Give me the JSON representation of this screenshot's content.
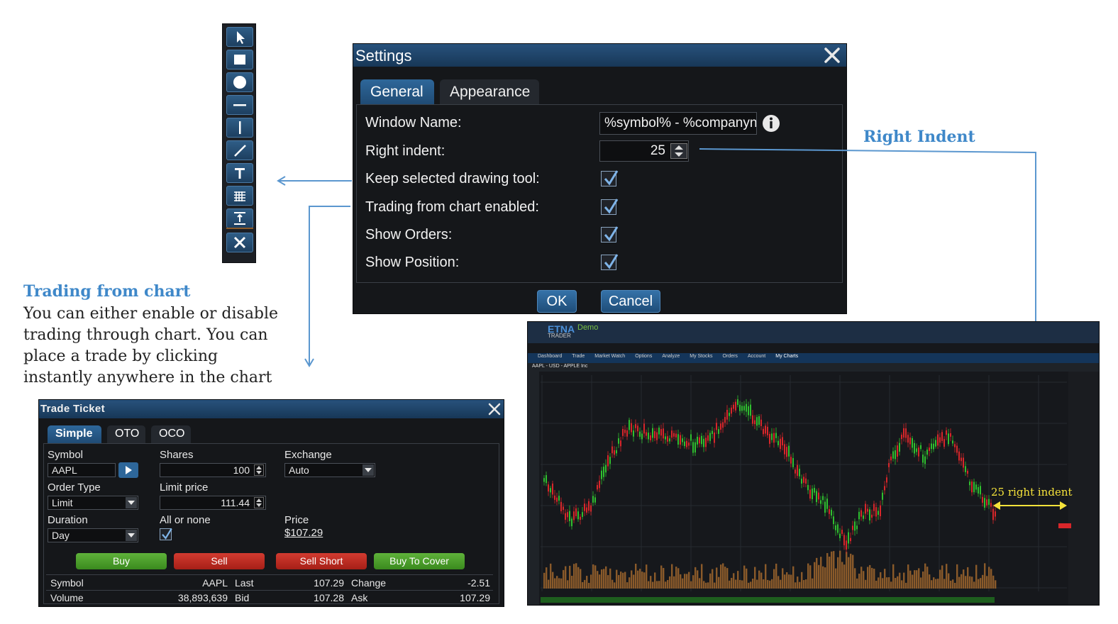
{
  "settings": {
    "title": "Settings",
    "tabs": [
      {
        "label": "General",
        "active": true
      },
      {
        "label": "Appearance",
        "active": false
      }
    ],
    "fields": {
      "window_name": {
        "label": "Window Name:",
        "value": "%symbol% - %companyna"
      },
      "right_indent": {
        "label": "Right indent:",
        "value": "25"
      },
      "keep_tool": {
        "label": "Keep selected drawing tool:",
        "checked": true
      },
      "trading_enabled": {
        "label": "Trading from chart enabled:",
        "checked": true
      },
      "show_orders": {
        "label": "Show Orders:",
        "checked": true
      },
      "show_position": {
        "label": "Show Position:",
        "checked": true
      }
    },
    "ok_label": "OK",
    "cancel_label": "Cancel"
  },
  "toolbar": {
    "tools": [
      "cursor-icon",
      "rectangle-icon",
      "circle-icon",
      "horizontal-line-icon",
      "vertical-line-icon",
      "trend-line-icon",
      "text-icon",
      "fibonacci-grid-icon",
      "measure-icon",
      "close-icon"
    ]
  },
  "annotations": {
    "right_indent_title": "Right Indent",
    "trading_title": "Trading from chart",
    "trading_lines": [
      "You can either enable or disable",
      "trading through chart. You can",
      "place a trade by clicking",
      "instantly anywhere in the chart"
    ],
    "indent_callout": "25 right indent"
  },
  "ticket": {
    "title": "Trade Ticket",
    "tabs": [
      {
        "label": "Simple",
        "active": true
      },
      {
        "label": "OTO",
        "active": false
      },
      {
        "label": "OCO",
        "active": false
      }
    ],
    "symbol": {
      "label": "Symbol",
      "value": "AAPL"
    },
    "shares": {
      "label": "Shares",
      "value": "100"
    },
    "exchange": {
      "label": "Exchange",
      "value": "Auto"
    },
    "order_type": {
      "label": "Order Type",
      "value": "Limit"
    },
    "limit_price": {
      "label": "Limit price",
      "value": "111.44"
    },
    "duration": {
      "label": "Duration",
      "value": "Day"
    },
    "all_or_none": {
      "label": "All or none",
      "checked": true
    },
    "price": {
      "label": "Price",
      "value": "$107.29"
    },
    "buttons": {
      "buy": "Buy",
      "sell": "Sell",
      "sell_short": "Sell Short",
      "buy_to_cover": "Buy To Cover"
    },
    "quote": {
      "symbol_label": "Symbol",
      "symbol_value": "AAPL",
      "last_label": "Last",
      "last_value": "107.29",
      "change_label": "Change",
      "change_value": "-2.51",
      "volume_label": "Volume",
      "volume_value": "38,893,639",
      "bid_label": "Bid",
      "bid_value": "107.28",
      "ask_label": "Ask",
      "ask_value": "107.29"
    }
  },
  "chart_window": {
    "brand": "ETNA",
    "brand_sub": "TRADER",
    "demo": "Demo",
    "symbol_bar": "AAPL - USD - APPLE Inc",
    "menu": [
      "Dashboard",
      "Trade",
      "Market Watch",
      "Options",
      "Analyze",
      "My Stocks",
      "Orders",
      "Account",
      "My Charts"
    ],
    "colors": {
      "up": "#2fbf2f",
      "down": "#d8262a",
      "volume": "#8a5a2a",
      "accent": "#2e679a",
      "callout": "#f5e23a"
    }
  }
}
